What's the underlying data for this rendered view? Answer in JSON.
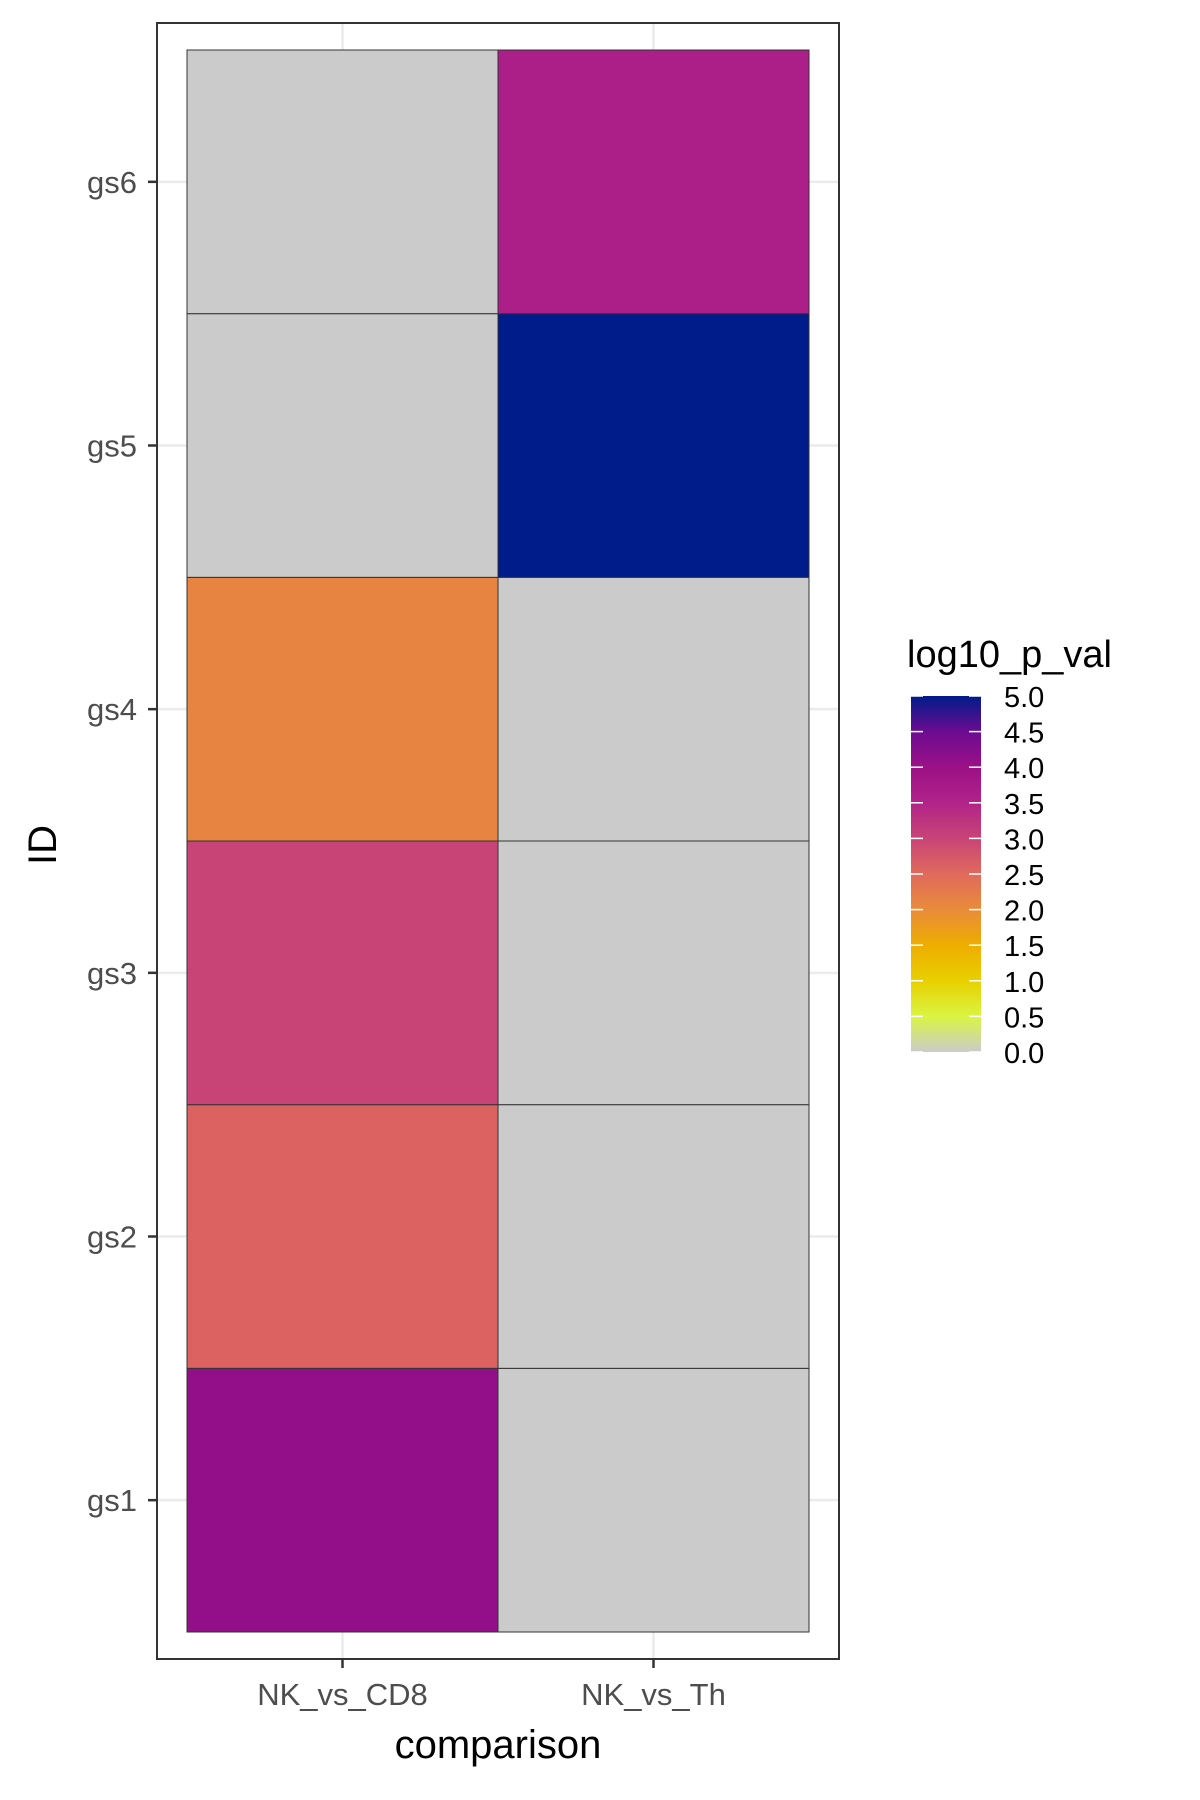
{
  "chart_data": {
    "type": "heatmap",
    "title": "",
    "xlabel": "comparison",
    "ylabel": "ID",
    "x_categories": [
      "NK_vs_CD8",
      "NK_vs_Th"
    ],
    "y_categories": [
      "gs1",
      "gs2",
      "gs3",
      "gs4",
      "gs5",
      "gs6"
    ],
    "cells": [
      {
        "x": "NK_vs_CD8",
        "y": "gs1",
        "value": 4.1
      },
      {
        "x": "NK_vs_CD8",
        "y": "gs2",
        "value": 2.6
      },
      {
        "x": "NK_vs_CD8",
        "y": "gs3",
        "value": 3.0
      },
      {
        "x": "NK_vs_CD8",
        "y": "gs4",
        "value": 2.1
      },
      {
        "x": "NK_vs_CD8",
        "y": "gs5",
        "value": 0.0
      },
      {
        "x": "NK_vs_CD8",
        "y": "gs6",
        "value": 0.0
      },
      {
        "x": "NK_vs_Th",
        "y": "gs1",
        "value": 0.0
      },
      {
        "x": "NK_vs_Th",
        "y": "gs2",
        "value": 0.0
      },
      {
        "x": "NK_vs_Th",
        "y": "gs3",
        "value": 0.0
      },
      {
        "x": "NK_vs_Th",
        "y": "gs4",
        "value": 0.0
      },
      {
        "x": "NK_vs_Th",
        "y": "gs5",
        "value": 5.0
      },
      {
        "x": "NK_vs_Th",
        "y": "gs6",
        "value": 3.6
      }
    ],
    "legend": {
      "title": "log10_p_val",
      "position": "right",
      "range": [
        0,
        5
      ],
      "ticks": [
        "0.0",
        "0.5",
        "1.0",
        "1.5",
        "2.0",
        "2.5",
        "3.0",
        "3.5",
        "4.0",
        "4.5",
        "5.0"
      ]
    },
    "color_scale": [
      {
        "value": 0.0,
        "color": "#cbcbcb"
      },
      {
        "value": 0.5,
        "color": "#d9f542"
      },
      {
        "value": 1.0,
        "color": "#e8d000"
      },
      {
        "value": 1.5,
        "color": "#eead00"
      },
      {
        "value": 2.0,
        "color": "#e98b3a"
      },
      {
        "value": 2.5,
        "color": "#e06a5c"
      },
      {
        "value": 3.0,
        "color": "#c84476"
      },
      {
        "value": 3.5,
        "color": "#b12388"
      },
      {
        "value": 4.0,
        "color": "#9c1087"
      },
      {
        "value": 4.5,
        "color": "#6b0b91"
      },
      {
        "value": 5.0,
        "color": "#001b8a"
      }
    ],
    "grid": true
  }
}
